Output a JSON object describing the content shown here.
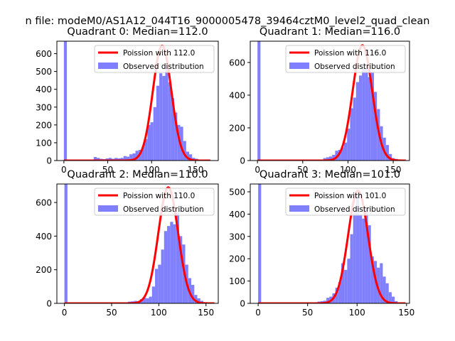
{
  "figure": {
    "suptitle": "n file: modeM0/AS1A12_044T16_9000005478_39464cztM0_level2_quad_clean"
  },
  "colors": {
    "histogram": "#8080ff",
    "poisson_line": "#ff0000",
    "axes": "#000000",
    "background": "#ffffff"
  },
  "chart_data": [
    {
      "type": "bar",
      "title": "Quadrant 0: Median=112.0",
      "xlim": [
        -8,
        176
      ],
      "ylim": [
        0,
        670
      ],
      "xticks": [
        0,
        50,
        100,
        150
      ],
      "yticks": [
        0,
        100,
        200,
        300,
        400,
        500,
        600
      ],
      "legend_position": "top-right",
      "series": [
        {
          "name": "Poission with 112.0",
          "kind": "line",
          "median": 112,
          "peak": 645,
          "sigma": 10.58
        },
        {
          "name": "Observed distribution",
          "kind": "histogram",
          "bin_width": 3.4,
          "bins": [
            {
              "x": 0,
              "y": 670
            },
            {
              "x": 34,
              "y": 20
            },
            {
              "x": 37.4,
              "y": 15
            },
            {
              "x": 40.8,
              "y": 10
            },
            {
              "x": 44.2,
              "y": 8
            },
            {
              "x": 47.6,
              "y": 12
            },
            {
              "x": 51,
              "y": 15
            },
            {
              "x": 54.4,
              "y": 10
            },
            {
              "x": 57.8,
              "y": 15
            },
            {
              "x": 61.2,
              "y": 12
            },
            {
              "x": 64.6,
              "y": 15
            },
            {
              "x": 68,
              "y": 25
            },
            {
              "x": 71.4,
              "y": 22
            },
            {
              "x": 74.8,
              "y": 35
            },
            {
              "x": 78.2,
              "y": 40
            },
            {
              "x": 81.6,
              "y": 55
            },
            {
              "x": 85,
              "y": 60
            },
            {
              "x": 88.4,
              "y": 75
            },
            {
              "x": 91.8,
              "y": 120
            },
            {
              "x": 95.2,
              "y": 200
            },
            {
              "x": 98.6,
              "y": 215
            },
            {
              "x": 102,
              "y": 300
            },
            {
              "x": 105.4,
              "y": 420
            },
            {
              "x": 108.8,
              "y": 490
            },
            {
              "x": 112.2,
              "y": 475
            },
            {
              "x": 115.6,
              "y": 530
            },
            {
              "x": 119,
              "y": 440
            },
            {
              "x": 122.4,
              "y": 350
            },
            {
              "x": 125.8,
              "y": 270
            },
            {
              "x": 129.2,
              "y": 200
            },
            {
              "x": 132.6,
              "y": 190
            },
            {
              "x": 136,
              "y": 110
            },
            {
              "x": 139.4,
              "y": 50
            },
            {
              "x": 142.8,
              "y": 35
            },
            {
              "x": 146.2,
              "y": 15
            },
            {
              "x": 149.6,
              "y": 10
            },
            {
              "x": 153,
              "y": 5
            }
          ]
        }
      ]
    },
    {
      "type": "bar",
      "title": "Quadrant 1: Median=116.0",
      "xlim": [
        -8,
        168
      ],
      "ylim": [
        0,
        730
      ],
      "xticks": [
        0,
        50,
        100,
        150
      ],
      "yticks": [
        0,
        200,
        400,
        600
      ],
      "legend_position": "top-right",
      "series": [
        {
          "name": "Poission with 116.0",
          "kind": "line",
          "median": 116,
          "peak": 705,
          "sigma": 10.77
        },
        {
          "name": "Observed distribution",
          "kind": "histogram",
          "bin_width": 3.3,
          "bins": [
            {
              "x": 0,
              "y": 730
            },
            {
              "x": 72.6,
              "y": 15
            },
            {
              "x": 75.9,
              "y": 20
            },
            {
              "x": 79.2,
              "y": 25
            },
            {
              "x": 82.5,
              "y": 35
            },
            {
              "x": 85.8,
              "y": 60
            },
            {
              "x": 89.1,
              "y": 65
            },
            {
              "x": 92.4,
              "y": 80
            },
            {
              "x": 95.7,
              "y": 110
            },
            {
              "x": 99,
              "y": 195
            },
            {
              "x": 102.3,
              "y": 320
            },
            {
              "x": 105.6,
              "y": 385
            },
            {
              "x": 108.9,
              "y": 480
            },
            {
              "x": 112.2,
              "y": 520
            },
            {
              "x": 115.5,
              "y": 575
            },
            {
              "x": 118.8,
              "y": 560
            },
            {
              "x": 122.1,
              "y": 510
            },
            {
              "x": 125.4,
              "y": 540
            },
            {
              "x": 128.7,
              "y": 420
            },
            {
              "x": 132,
              "y": 315
            },
            {
              "x": 135.3,
              "y": 210
            },
            {
              "x": 138.6,
              "y": 140
            },
            {
              "x": 141.9,
              "y": 95
            },
            {
              "x": 145.2,
              "y": 40
            },
            {
              "x": 148.5,
              "y": 15
            },
            {
              "x": 151.8,
              "y": 10
            }
          ]
        }
      ]
    },
    {
      "type": "bar",
      "title": "Quadrant 2: Median=110.0",
      "xlim": [
        -8,
        163
      ],
      "ylim": [
        0,
        710
      ],
      "xticks": [
        0,
        50,
        100,
        150
      ],
      "yticks": [
        0,
        200,
        400,
        600
      ],
      "legend_position": "top-right",
      "series": [
        {
          "name": "Poission with 110.0",
          "kind": "line",
          "median": 110,
          "peak": 690,
          "sigma": 10.49
        },
        {
          "name": "Observed distribution",
          "kind": "histogram",
          "bin_width": 3.2,
          "bins": [
            {
              "x": 0,
              "y": 710
            },
            {
              "x": 67.2,
              "y": 10
            },
            {
              "x": 70.4,
              "y": 12
            },
            {
              "x": 73.6,
              "y": 15
            },
            {
              "x": 76.8,
              "y": 12
            },
            {
              "x": 80,
              "y": 25
            },
            {
              "x": 83.2,
              "y": 35
            },
            {
              "x": 86.4,
              "y": 30
            },
            {
              "x": 89.6,
              "y": 40
            },
            {
              "x": 92.8,
              "y": 100
            },
            {
              "x": 96,
              "y": 205
            },
            {
              "x": 99.2,
              "y": 230
            },
            {
              "x": 102.4,
              "y": 320
            },
            {
              "x": 105.6,
              "y": 430
            },
            {
              "x": 108.8,
              "y": 460
            },
            {
              "x": 112,
              "y": 485
            },
            {
              "x": 115.2,
              "y": 470
            },
            {
              "x": 118.4,
              "y": 540
            },
            {
              "x": 121.6,
              "y": 400
            },
            {
              "x": 124.8,
              "y": 350
            },
            {
              "x": 128,
              "y": 230
            },
            {
              "x": 131.2,
              "y": 150
            },
            {
              "x": 134.4,
              "y": 110
            },
            {
              "x": 137.6,
              "y": 50
            },
            {
              "x": 140.8,
              "y": 30
            },
            {
              "x": 144,
              "y": 15
            }
          ]
        }
      ]
    },
    {
      "type": "bar",
      "title": "Quadrant 3: Median=101.0",
      "xlim": [
        -8,
        153
      ],
      "ylim": [
        0,
        535
      ],
      "xticks": [
        0,
        50,
        100,
        150
      ],
      "yticks": [
        0,
        100,
        200,
        300,
        400,
        500
      ],
      "legend_position": "top-right",
      "series": [
        {
          "name": "Poission with 101.0",
          "kind": "line",
          "median": 101,
          "peak": 505,
          "sigma": 10.05
        },
        {
          "name": "Observed distribution",
          "kind": "histogram",
          "bin_width": 3.0,
          "bins": [
            {
              "x": 0,
              "y": 535
            },
            {
              "x": 57,
              "y": 5
            },
            {
              "x": 60,
              "y": 8
            },
            {
              "x": 63,
              "y": 10
            },
            {
              "x": 66,
              "y": 12
            },
            {
              "x": 69,
              "y": 25
            },
            {
              "x": 72,
              "y": 30
            },
            {
              "x": 75,
              "y": 45
            },
            {
              "x": 78,
              "y": 70
            },
            {
              "x": 81,
              "y": 95
            },
            {
              "x": 84,
              "y": 180
            },
            {
              "x": 87,
              "y": 150
            },
            {
              "x": 90,
              "y": 200
            },
            {
              "x": 93,
              "y": 310
            },
            {
              "x": 96,
              "y": 410
            },
            {
              "x": 99,
              "y": 490
            },
            {
              "x": 102,
              "y": 400
            },
            {
              "x": 105,
              "y": 380
            },
            {
              "x": 108,
              "y": 430
            },
            {
              "x": 111,
              "y": 350
            },
            {
              "x": 114,
              "y": 210
            },
            {
              "x": 117,
              "y": 190
            },
            {
              "x": 120,
              "y": 160
            },
            {
              "x": 123,
              "y": 180
            },
            {
              "x": 126,
              "y": 120
            },
            {
              "x": 129,
              "y": 90
            },
            {
              "x": 132,
              "y": 50
            },
            {
              "x": 135,
              "y": 30
            },
            {
              "x": 138,
              "y": 10
            }
          ]
        }
      ]
    }
  ]
}
